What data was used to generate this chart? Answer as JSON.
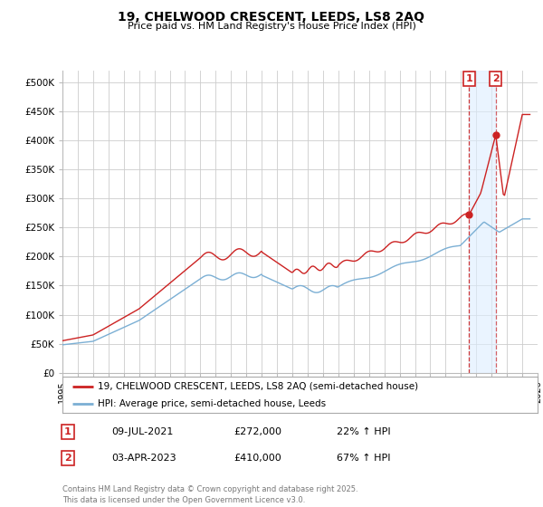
{
  "title": "19, CHELWOOD CRESCENT, LEEDS, LS8 2AQ",
  "subtitle": "Price paid vs. HM Land Registry's House Price Index (HPI)",
  "ylabel_ticks": [
    "£0",
    "£50K",
    "£100K",
    "£150K",
    "£200K",
    "£250K",
    "£300K",
    "£350K",
    "£400K",
    "£450K",
    "£500K"
  ],
  "ytick_values": [
    0,
    50000,
    100000,
    150000,
    200000,
    250000,
    300000,
    350000,
    400000,
    450000,
    500000
  ],
  "ylim": [
    0,
    520000
  ],
  "xlim_start": 1995.0,
  "xlim_end": 2026.0,
  "red_line_color": "#cc2222",
  "blue_line_color": "#7bafd4",
  "sale_vline1_color": "#cc2222",
  "sale_vline2_color": "#cc2222",
  "shade_color": "#ddeeff",
  "grid_color": "#cccccc",
  "background_color": "#ffffff",
  "legend_label_red": "19, CHELWOOD CRESCENT, LEEDS, LS8 2AQ (semi-detached house)",
  "legend_label_blue": "HPI: Average price, semi-detached house, Leeds",
  "sale1_label": "1",
  "sale1_date": "09-JUL-2021",
  "sale1_price": "£272,000",
  "sale1_hpi": "22% ↑ HPI",
  "sale2_label": "2",
  "sale2_date": "03-APR-2023",
  "sale2_price": "£410,000",
  "sale2_hpi": "67% ↑ HPI",
  "footer": "Contains HM Land Registry data © Crown copyright and database right 2025.\nThis data is licensed under the Open Government Licence v3.0.",
  "sale1_x": 2021.53,
  "sale1_y": 272000,
  "sale2_x": 2023.27,
  "sale2_y": 410000,
  "annotation_box_color": "#cc2222"
}
